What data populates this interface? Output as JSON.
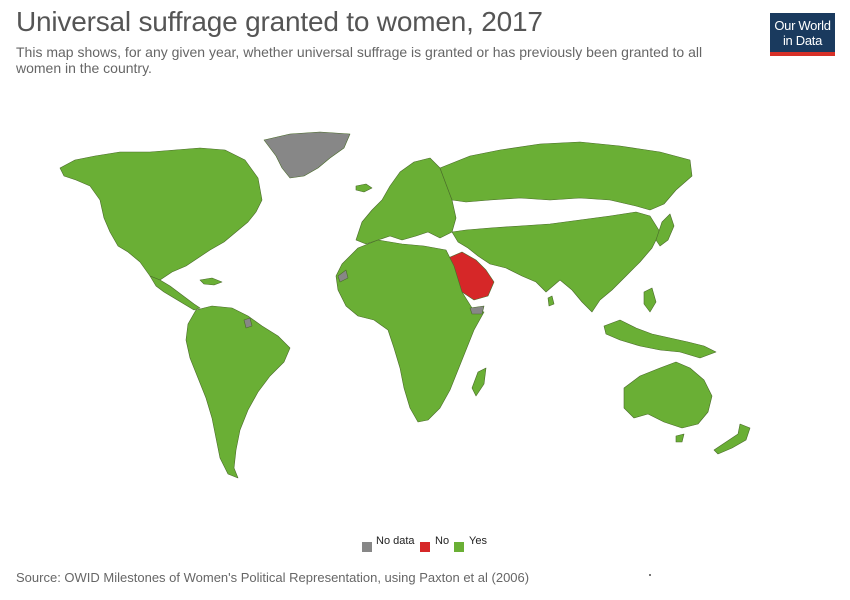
{
  "header": {
    "title": "Universal suffrage granted to women, 2017",
    "subtitle": "This map shows, for any given year, whether universal suffrage is granted or has previously been granted to all women in the country."
  },
  "logo": {
    "line1": "Our World",
    "line2": "in Data"
  },
  "colors": {
    "yes": "#6aaf35",
    "no": "#d62728",
    "no_data": "#878787",
    "border": "#4a6b2a",
    "logo_bg": "#1a3a5e",
    "logo_accent": "#d73027"
  },
  "legend": {
    "items": [
      {
        "label": "No data",
        "color": "#878787"
      },
      {
        "label": "No",
        "color": "#d62728"
      },
      {
        "label": "Yes",
        "color": "#6aaf35"
      }
    ]
  },
  "source": "Source: OWID Milestones of Women's Political Representation, using Paxton et al (2006)"
}
